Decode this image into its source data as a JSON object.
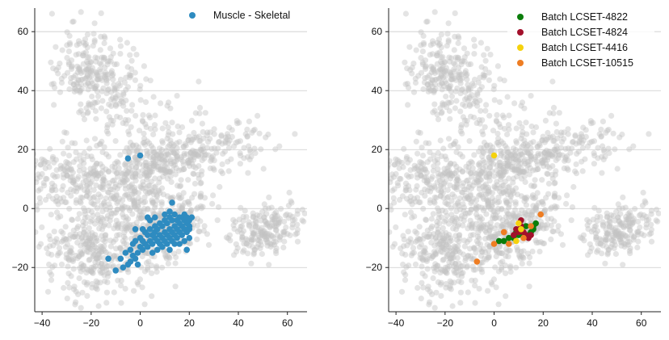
{
  "chart_data": [
    {
      "type": "scatter",
      "title": "",
      "xlabel": "",
      "ylabel": "",
      "xlim": [
        -43,
        68
      ],
      "ylim": [
        -35,
        68
      ],
      "xticks": [
        -40,
        -20,
        0,
        20,
        40,
        60
      ],
      "yticks": [
        -20,
        0,
        20,
        40,
        60
      ],
      "xtick_labels": [
        "−40",
        "−20",
        "0",
        "20",
        "40",
        "60"
      ],
      "ytick_labels": [
        "−20",
        "0",
        "20",
        "40",
        "60"
      ],
      "grid": "y-major",
      "legend_position": "top-right",
      "background_color": "#c4c4c4",
      "background_clusters": [
        {
          "center": [
            -18,
            45
          ],
          "spread": [
            7,
            9
          ],
          "rotation_deg": 55,
          "n": 260
        },
        {
          "center": [
            -5,
            5
          ],
          "spread": [
            16,
            11
          ],
          "rotation_deg": 40,
          "n": 520
        },
        {
          "center": [
            -22,
            -15
          ],
          "spread": [
            8,
            9
          ],
          "rotation_deg": 60,
          "n": 220
        },
        {
          "center": [
            20,
            18
          ],
          "spread": [
            16,
            4
          ],
          "rotation_deg": 10,
          "n": 260
        },
        {
          "center": [
            10,
            -8
          ],
          "spread": [
            11,
            5
          ],
          "rotation_deg": 30,
          "n": 240
        },
        {
          "center": [
            52,
            -7
          ],
          "spread": [
            8,
            4
          ],
          "rotation_deg": 15,
          "n": 200
        },
        {
          "center": [
            -30,
            10
          ],
          "spread": [
            6,
            10
          ],
          "rotation_deg": 80,
          "n": 140
        }
      ],
      "series": [
        {
          "name": "Muscle - Skeletal",
          "color": "#2e8bc0",
          "points": [
            [
              -5,
              17
            ],
            [
              0,
              18
            ],
            [
              13,
              2
            ],
            [
              -13,
              -17
            ],
            [
              -10,
              -21
            ],
            [
              -7,
              -20
            ],
            [
              -5,
              -19
            ],
            [
              -2,
              -17
            ],
            [
              -8,
              -17
            ],
            [
              -6,
              -15
            ],
            [
              -4,
              -14
            ],
            [
              -3,
              -16
            ],
            [
              -1,
              -15
            ],
            [
              0,
              -13
            ],
            [
              1,
              -14
            ],
            [
              2,
              -12
            ],
            [
              3,
              -13
            ],
            [
              4,
              -11
            ],
            [
              5,
              -12
            ],
            [
              6,
              -10
            ],
            [
              7,
              -11
            ],
            [
              8,
              -9
            ],
            [
              9,
              -10
            ],
            [
              10,
              -8
            ],
            [
              11,
              -9
            ],
            [
              12,
              -7
            ],
            [
              13,
              -8
            ],
            [
              14,
              -6
            ],
            [
              15,
              -7
            ],
            [
              16,
              -5
            ],
            [
              17,
              -6
            ],
            [
              18,
              -4
            ],
            [
              19,
              -5
            ],
            [
              20,
              -6
            ],
            [
              21,
              -3
            ],
            [
              2,
              -8
            ],
            [
              4,
              -7
            ],
            [
              6,
              -6
            ],
            [
              8,
              -5
            ],
            [
              10,
              -4
            ],
            [
              12,
              -3
            ],
            [
              14,
              -2
            ],
            [
              16,
              -3
            ],
            [
              18,
              -2
            ],
            [
              -2,
              -11
            ],
            [
              0,
              -10
            ],
            [
              3,
              -9
            ],
            [
              5,
              -15
            ],
            [
              7,
              -14
            ],
            [
              9,
              -13
            ],
            [
              11,
              -12
            ],
            [
              13,
              -11
            ],
            [
              15,
              -10
            ],
            [
              17,
              -9
            ],
            [
              19,
              -8
            ],
            [
              20,
              -7
            ],
            [
              -4,
              -18
            ],
            [
              -3,
              -12
            ],
            [
              1,
              -11
            ],
            [
              6,
              -8
            ],
            [
              9,
              -6
            ],
            [
              11,
              -5
            ],
            [
              13,
              -4
            ],
            [
              15,
              -4
            ],
            [
              17,
              -3
            ],
            [
              19,
              -3
            ],
            [
              8,
              -12
            ],
            [
              10,
              -11
            ],
            [
              12,
              -10
            ],
            [
              14,
              -9
            ],
            [
              16,
              -8
            ],
            [
              18,
              -7
            ],
            [
              20,
              -10
            ],
            [
              19,
              -14
            ],
            [
              -1,
              -19
            ],
            [
              1,
              -7
            ],
            [
              -2,
              -7
            ],
            [
              4,
              -4
            ],
            [
              12,
              -14
            ],
            [
              16,
              -12
            ],
            [
              18,
              -11
            ],
            [
              20,
              -4
            ],
            [
              10,
              -2
            ],
            [
              12,
              -1
            ],
            [
              6,
              -3
            ],
            [
              3,
              -3
            ],
            [
              14,
              -12
            ],
            [
              5,
              -9
            ],
            [
              7,
              -7
            ]
          ]
        }
      ]
    },
    {
      "type": "scatter",
      "title": "",
      "xlabel": "",
      "ylabel": "",
      "xlim": [
        -43,
        68
      ],
      "ylim": [
        -35,
        68
      ],
      "xticks": [
        -40,
        -20,
        0,
        20,
        40,
        60
      ],
      "yticks": [
        -20,
        0,
        20,
        40,
        60
      ],
      "xtick_labels": [
        "−40",
        "−20",
        "0",
        "20",
        "40",
        "60"
      ],
      "ytick_labels": [
        "−20",
        "0",
        "20",
        "40",
        "60"
      ],
      "grid": "y-major",
      "legend_position": "top-right",
      "background_color": "#c4c4c4",
      "series": [
        {
          "name": "Batch LCSET-4822",
          "color": "#0b7d0b",
          "points": [
            [
              2,
              -11
            ],
            [
              4,
              -11
            ],
            [
              6,
              -10
            ],
            [
              9,
              -8
            ],
            [
              11,
              -7
            ],
            [
              13,
              -6
            ],
            [
              14,
              -9
            ],
            [
              15,
              -8
            ],
            [
              16,
              -7
            ],
            [
              16,
              -6
            ],
            [
              17,
              -5
            ],
            [
              12,
              -9
            ],
            [
              10,
              -9
            ],
            [
              8,
              -10
            ]
          ]
        },
        {
          "name": "Batch LCSET-4824",
          "color": "#a3102b",
          "points": [
            [
              9,
              -7
            ],
            [
              10,
              -8
            ],
            [
              11,
              -6
            ],
            [
              12,
              -8
            ],
            [
              13,
              -9
            ],
            [
              14,
              -10
            ],
            [
              11,
              -4
            ],
            [
              8,
              -9
            ],
            [
              15,
              -9
            ]
          ]
        },
        {
          "name": "Batch LCSET-4416",
          "color": "#f5d20d",
          "points": [
            [
              0,
              18
            ],
            [
              10,
              -5
            ],
            [
              11,
              -7
            ],
            [
              9,
              -11
            ]
          ]
        },
        {
          "name": "Batch LCSET-10515",
          "color": "#ee7d23",
          "points": [
            [
              -7,
              -18
            ],
            [
              0,
              -12
            ],
            [
              4,
              -8
            ],
            [
              6,
              -12
            ],
            [
              12,
              -10
            ],
            [
              15,
              -6
            ],
            [
              19,
              -2
            ]
          ]
        }
      ]
    }
  ]
}
